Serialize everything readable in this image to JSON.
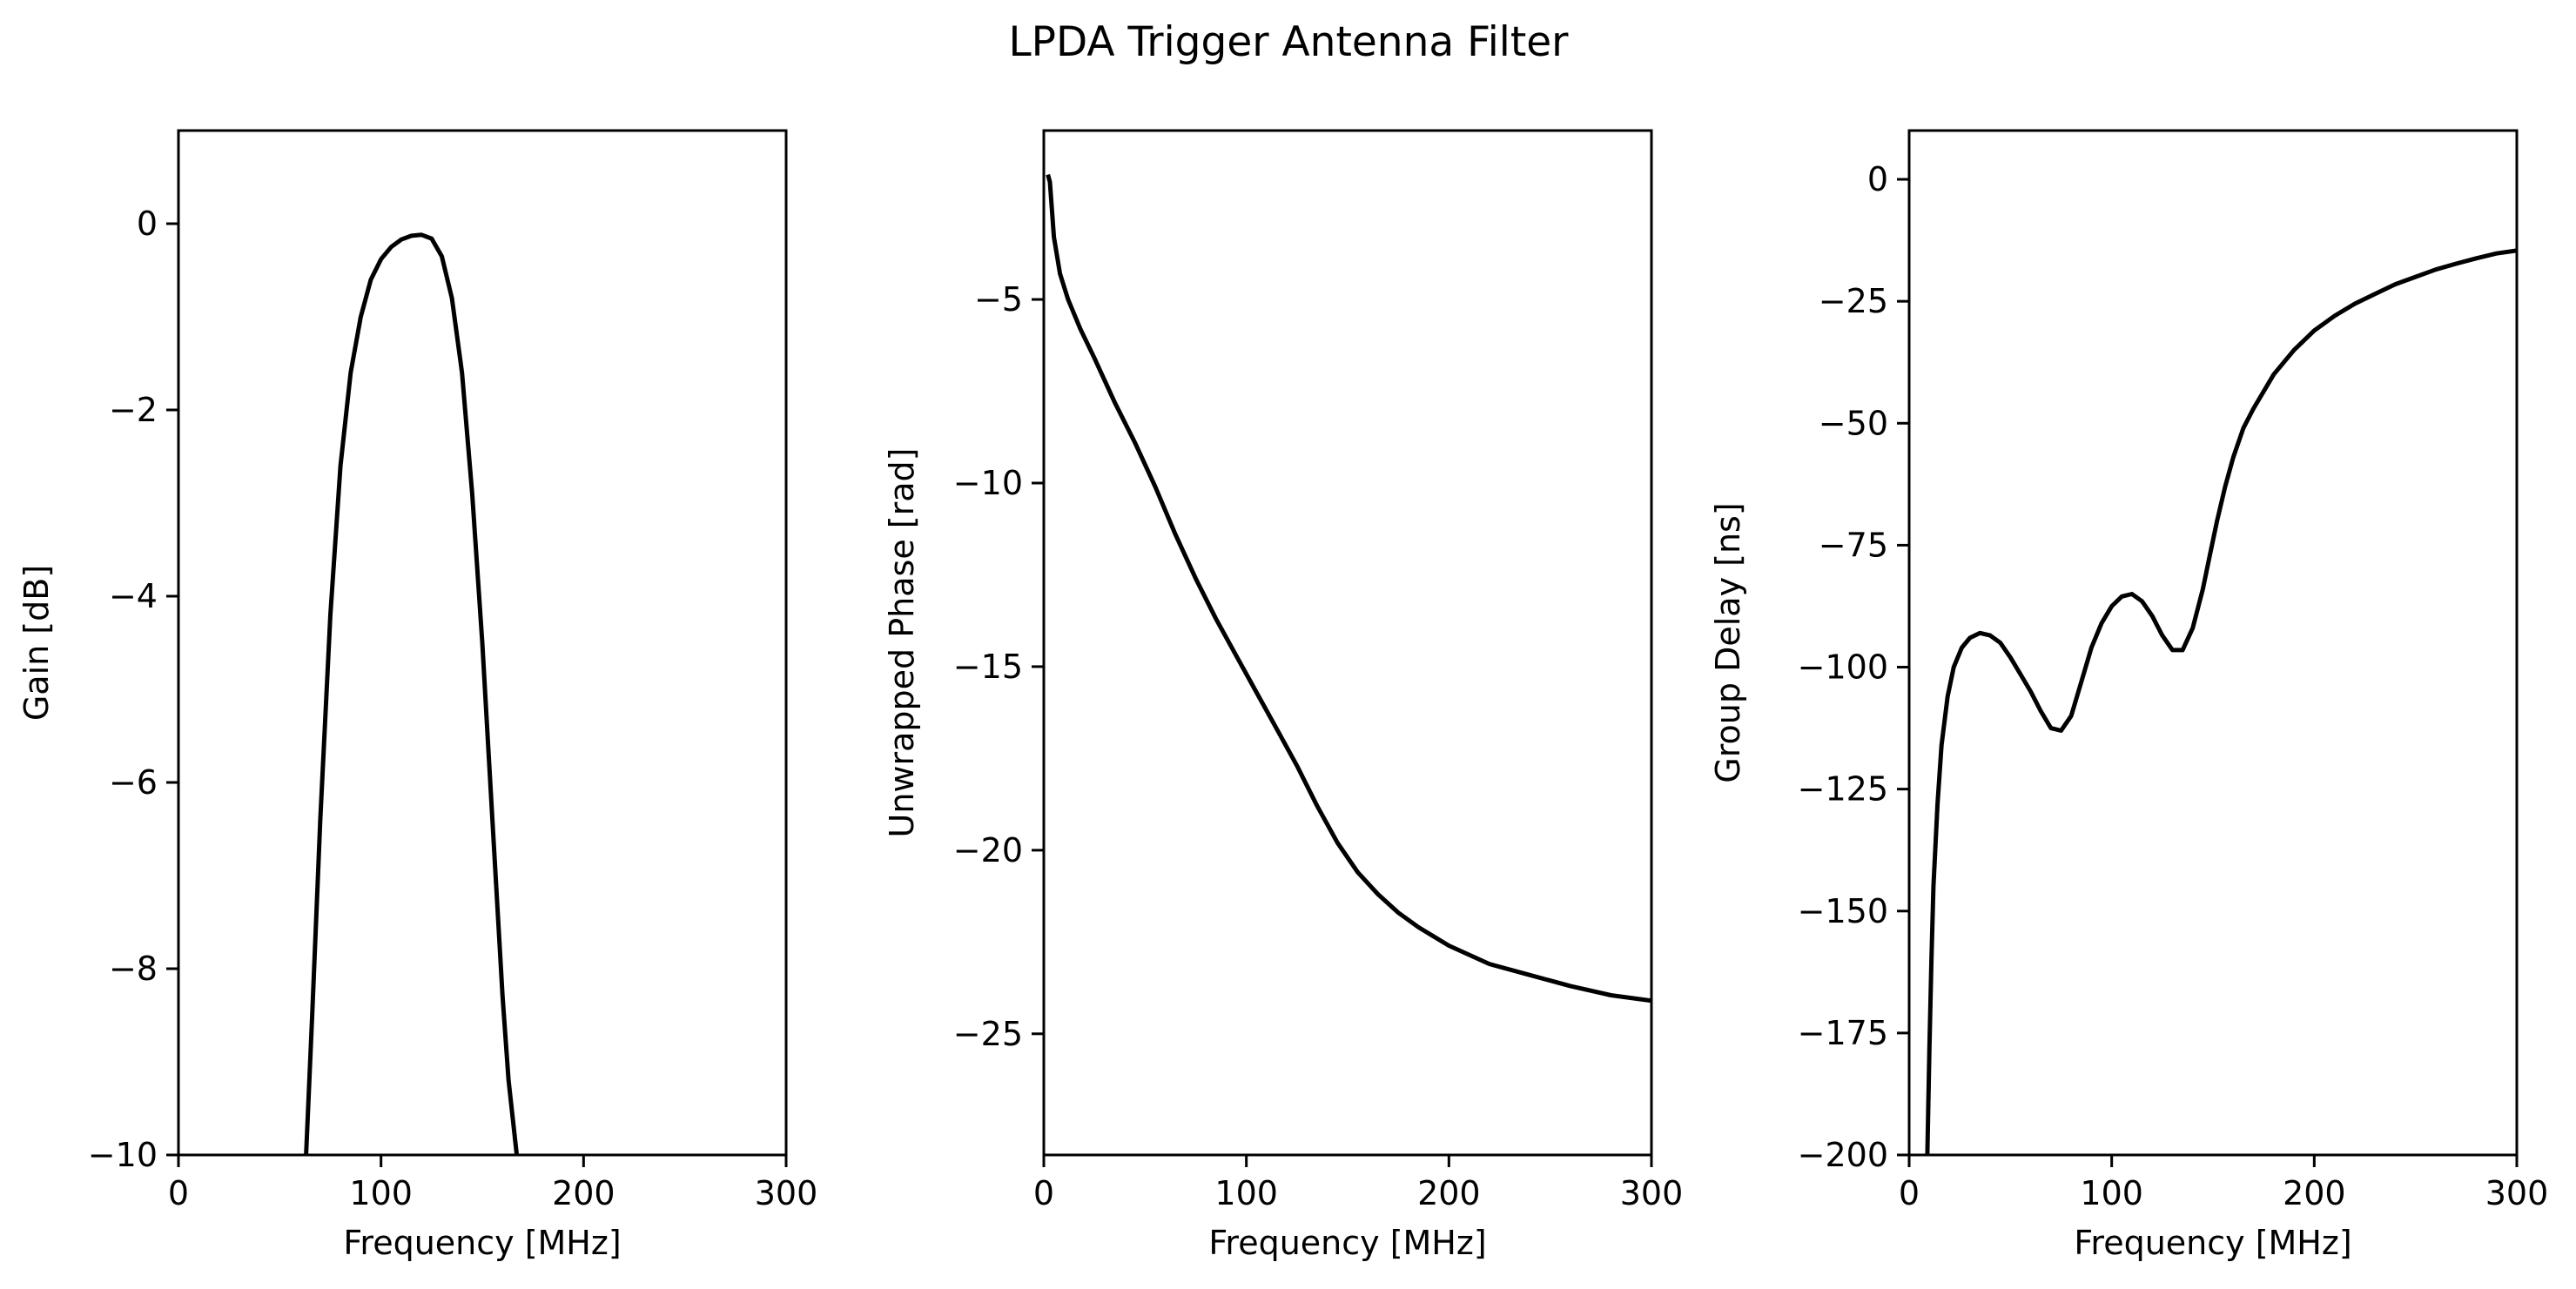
{
  "figure": {
    "title": "LPDA Trigger Antenna Filter",
    "line_color": "#000000",
    "background": "#ffffff"
  },
  "chart_data": [
    {
      "type": "line",
      "title": "",
      "xlabel": "Frequency [MHz]",
      "ylabel": "Gain [dB]",
      "xlim": [
        0,
        300
      ],
      "ylim": [
        -10,
        1
      ],
      "xticks": [
        0,
        100,
        200,
        300
      ],
      "yticks": [
        0,
        -2,
        -4,
        -6,
        -8,
        -10
      ],
      "xtick_labels": [
        "0",
        "100",
        "200",
        "300"
      ],
      "ytick_labels": [
        "0",
        "−2",
        "−4",
        "−6",
        "−8",
        "−10"
      ],
      "grid": false,
      "series": [
        {
          "x": [
            63,
            66,
            70,
            75,
            80,
            85,
            90,
            95,
            100,
            105,
            110,
            115,
            120,
            125,
            130,
            135,
            140,
            145,
            150,
            155,
            160,
            163,
            167
          ],
          "y": [
            -10,
            -8.5,
            -6.4,
            -4.2,
            -2.6,
            -1.6,
            -1.0,
            -0.6,
            -0.38,
            -0.25,
            -0.17,
            -0.13,
            -0.12,
            -0.16,
            -0.35,
            -0.8,
            -1.6,
            -2.9,
            -4.5,
            -6.4,
            -8.3,
            -9.2,
            -10
          ]
        }
      ]
    },
    {
      "type": "line",
      "title": "",
      "xlabel": "Frequency [MHz]",
      "ylabel": "Unwrapped Phase [rad]",
      "xlim": [
        0,
        300
      ],
      "ylim": [
        -28.3,
        -0.4
      ],
      "xticks": [
        0,
        100,
        200,
        300
      ],
      "yticks": [
        -5,
        -10,
        -15,
        -20,
        -25
      ],
      "xtick_labels": [
        "0",
        "100",
        "200",
        "300"
      ],
      "ytick_labels": [
        "−5",
        "−10",
        "−15",
        "−20",
        "−25"
      ],
      "grid": false,
      "series": [
        {
          "x": [
            2,
            3,
            5,
            8,
            12,
            18,
            25,
            35,
            45,
            55,
            65,
            75,
            85,
            95,
            105,
            115,
            125,
            135,
            145,
            155,
            165,
            175,
            185,
            200,
            220,
            240,
            260,
            280,
            300
          ],
          "y": [
            -1.6,
            -1.8,
            -3.3,
            -4.3,
            -5.0,
            -5.8,
            -6.6,
            -7.8,
            -8.9,
            -10.1,
            -11.4,
            -12.6,
            -13.7,
            -14.7,
            -15.7,
            -16.7,
            -17.7,
            -18.8,
            -19.8,
            -20.6,
            -21.2,
            -21.7,
            -22.1,
            -22.6,
            -23.1,
            -23.4,
            -23.7,
            -23.95,
            -24.1
          ]
        }
      ]
    },
    {
      "type": "line",
      "title": "",
      "xlabel": "Frequency [MHz]",
      "ylabel": "Group Delay [ns]",
      "xlim": [
        0,
        300
      ],
      "ylim": [
        -200,
        10
      ],
      "xticks": [
        0,
        100,
        200,
        300
      ],
      "yticks": [
        0,
        -25,
        -50,
        -75,
        -100,
        -125,
        -150,
        -175,
        -200
      ],
      "xtick_labels": [
        "0",
        "100",
        "200",
        "300"
      ],
      "ytick_labels": [
        "0",
        "−25",
        "−50",
        "−75",
        "−100",
        "−125",
        "−150",
        "−175",
        "−200"
      ],
      "grid": false,
      "series": [
        {
          "x": [
            9,
            10,
            11,
            12,
            14,
            16,
            19,
            22,
            26,
            30,
            35,
            40,
            45,
            50,
            55,
            60,
            65,
            70,
            75,
            80,
            85,
            90,
            95,
            100,
            105,
            110,
            115,
            120,
            125,
            130,
            135,
            140,
            145,
            148,
            152,
            156,
            160,
            165,
            170,
            180,
            190,
            200,
            210,
            220,
            230,
            240,
            250,
            260,
            270,
            280,
            290,
            300
          ],
          "y": [
            -200,
            -178,
            -160,
            -145,
            -128,
            -116,
            -106,
            -100,
            -96,
            -94,
            -93,
            -93.5,
            -95,
            -98,
            -101.5,
            -105,
            -109,
            -112.5,
            -113,
            -110,
            -103,
            -96,
            -91,
            -87.5,
            -85.5,
            -85,
            -86.5,
            -89.5,
            -93.5,
            -96.5,
            -96.5,
            -92,
            -84,
            -78,
            -70,
            -63,
            -57,
            -51,
            -47,
            -40,
            -35,
            -31,
            -28,
            -25.5,
            -23.5,
            -21.5,
            -20,
            -18.5,
            -17.3,
            -16.2,
            -15.2,
            -14.6
          ]
        }
      ]
    }
  ]
}
